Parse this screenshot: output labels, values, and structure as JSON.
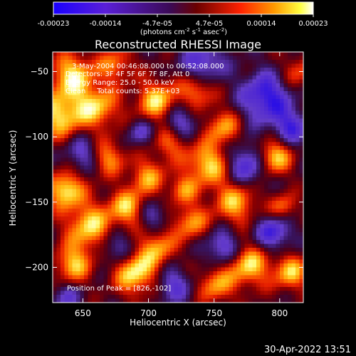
{
  "colorbar": {
    "ticks": [
      "-0.00023",
      "-0.00014",
      "-4.7e-05",
      "4.7e-05",
      "0.00014",
      "0.00023"
    ],
    "units_prefix": "(photons cm",
    "units_exp1": "-2",
    "units_mid": " s",
    "units_exp2": "-1",
    "units_mid2": " asec",
    "units_exp3": "-2",
    "units_suffix": ")"
  },
  "chart_data": {
    "type": "heatmap",
    "title": "Reconstructed RHESSI Image",
    "xlabel": "Heliocentric X (arcsec)",
    "ylabel": "Heliocentric Y (arcsec)",
    "xlim": [
      627,
      818
    ],
    "ylim": [
      -227,
      -35
    ],
    "x_ticks": [
      650,
      700,
      750,
      800
    ],
    "y_ticks": [
      -50,
      -100,
      -150,
      -200
    ],
    "x_tick_labels": [
      "650",
      "700",
      "750",
      "800"
    ],
    "y_tick_labels": [
      "−50",
      "−100",
      "−150",
      "−200"
    ],
    "color_range": [
      -0.00023,
      0.00023
    ],
    "colormap": "blue-purple-red-orange-yellow-white",
    "peak": [
      826,
      -102
    ],
    "annotations": {
      "time": "3-May-2004 00:46:08.000 to 00:52:08.000",
      "detectors": "Detectors: 3F 4F 5F 6F 7F 8F, Att 0",
      "energy": "Energy Range: 25.0 - 50.0 keV",
      "clean": "Clean     Total counts: 5.37E+03",
      "peak_text": "Position of Peak = [826,-102]"
    }
  },
  "footer": {
    "timestamp": "30-Apr-2022 13:51"
  }
}
